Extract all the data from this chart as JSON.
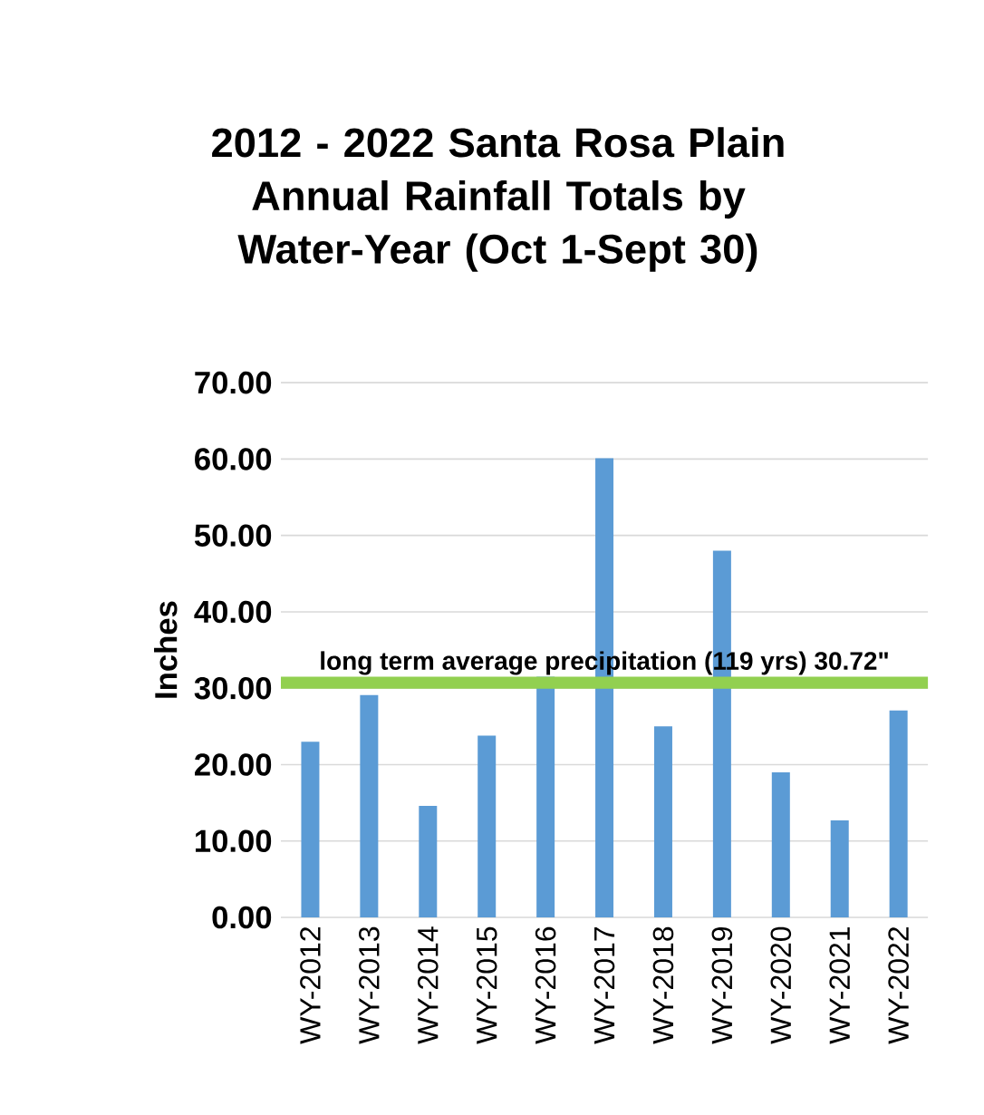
{
  "chart_data": {
    "type": "bar",
    "title": "2012 - 2022 Santa Rosa Plain Annual Rainfall Totals by Water-Year (Oct 1-Sept 30)",
    "ylabel": "Inches",
    "categories": [
      "WY-2012",
      "WY-2013",
      "WY-2014",
      "WY-2015",
      "WY-2016",
      "WY-2017",
      "WY-2018",
      "WY-2019",
      "WY-2020",
      "WY-2021",
      "WY-2022"
    ],
    "values": [
      23.0,
      29.1,
      14.6,
      23.8,
      31.5,
      60.1,
      25.0,
      48.0,
      19.0,
      12.7,
      27.1
    ],
    "color": "#5b9bd5",
    "ylim": [
      0,
      70
    ],
    "yticks": [
      {
        "value": 0,
        "label": "0.00"
      },
      {
        "value": 10,
        "label": "10.00"
      },
      {
        "value": 20,
        "label": "20.00"
      },
      {
        "value": 30,
        "label": "30.00"
      },
      {
        "value": 40,
        "label": "40.00"
      },
      {
        "value": 50,
        "label": "50.00"
      },
      {
        "value": 60,
        "label": "60.00"
      },
      {
        "value": 70,
        "label": "70.00"
      }
    ],
    "grid": "y",
    "ref_lines": [
      {
        "axis": "y",
        "value": 30.72,
        "label": "long term average precipitation (119 yrs) 30.72\"",
        "color": "#92d050"
      }
    ]
  }
}
